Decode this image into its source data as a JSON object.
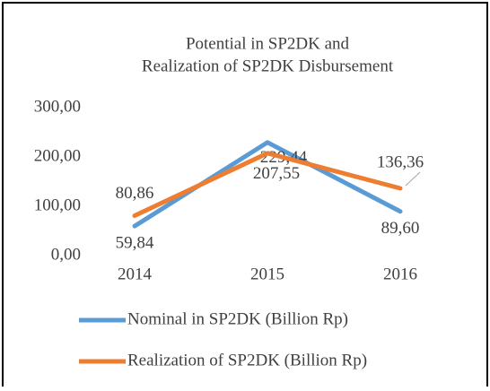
{
  "chart_data": {
    "type": "line",
    "title": [
      "Potential in SP2DK and",
      "Realization of SP2DK Disbursement"
    ],
    "categories": [
      "2014",
      "2015",
      "2016"
    ],
    "series": [
      {
        "name": "Nominal in SP2DK (Billion Rp)",
        "color": "#5b9bd5",
        "values": [
          59.84,
          229.44,
          89.6
        ],
        "value_labels": [
          "59,84",
          "229,44",
          "89,60"
        ]
      },
      {
        "name": "Realization of SP2DK (Billion Rp)",
        "color": "#ed7d31",
        "values": [
          80.86,
          207.55,
          136.36
        ],
        "value_labels": [
          "80,86",
          "207,55",
          "136,36"
        ]
      }
    ],
    "ylim": [
      0,
      300
    ],
    "yticks": [
      {
        "value": 0,
        "label": "0,00"
      },
      {
        "value": 100,
        "label": "100,00"
      },
      {
        "value": 200,
        "label": "200,00"
      },
      {
        "value": 300,
        "label": "300,00"
      }
    ],
    "grid": false,
    "legend": "bottom"
  }
}
